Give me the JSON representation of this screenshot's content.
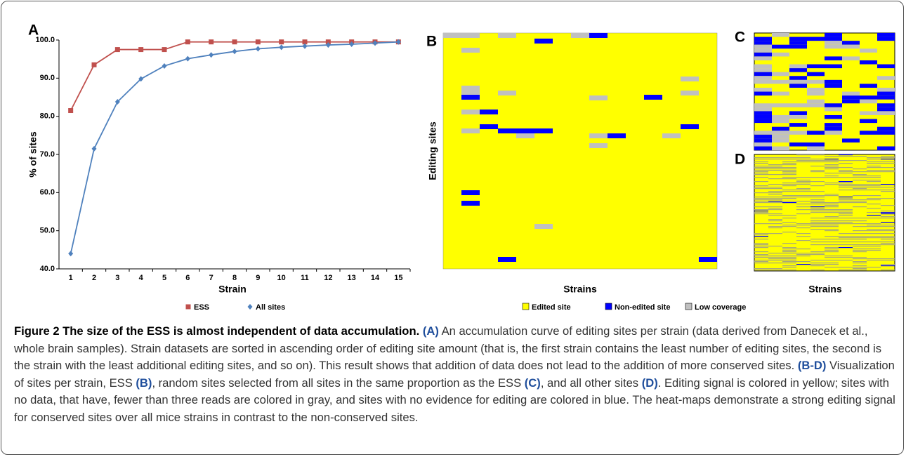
{
  "chart_data": [
    {
      "type": "line",
      "panel": "A",
      "xlabel": "Strain",
      "ylabel": "% of sites",
      "categories": [
        "1",
        "2",
        "3",
        "4",
        "5",
        "6",
        "7",
        "8",
        "9",
        "10",
        "11",
        "12",
        "13",
        "14",
        "15"
      ],
      "ylim": [
        40,
        100
      ],
      "yticks": [
        {
          "value": 40,
          "label": "40.0"
        },
        {
          "value": 50,
          "label": "50.0"
        },
        {
          "value": 60,
          "label": "60.0"
        },
        {
          "value": 70,
          "label": "70.0"
        },
        {
          "value": 80,
          "label": "80.0"
        },
        {
          "value": 90,
          "label": "90.0"
        },
        {
          "value": 100,
          "label": "100.0"
        }
      ],
      "series": [
        {
          "name": "ESS",
          "color": "#c0504d",
          "marker": "square",
          "values": [
            81.5,
            93.5,
            97.5,
            97.5,
            97.5,
            99.5,
            99.5,
            99.5,
            99.5,
            99.5,
            99.5,
            99.5,
            99.5,
            99.5,
            99.5
          ]
        },
        {
          "name": "All sites",
          "color": "#4f81bd",
          "marker": "diamond",
          "values": [
            44,
            71.5,
            83.8,
            89.8,
            93.2,
            95.1,
            96.1,
            97,
            97.7,
            98.1,
            98.4,
            98.7,
            98.9,
            99.2,
            99.5
          ]
        }
      ]
    },
    {
      "type": "heatmap",
      "panel": "B",
      "xlabel": "Strains",
      "ylabel": "Editing sites",
      "legend": [
        {
          "name": "Edited site",
          "color": "#ffff00"
        },
        {
          "name": "Non-edited site",
          "color": "#0000ff"
        },
        {
          "name": "Low coverage",
          "color": "#c0c0c0"
        }
      ]
    },
    {
      "type": "heatmap",
      "panel": "C"
    },
    {
      "type": "heatmap",
      "panel": "D",
      "xlabel": "Strains"
    }
  ],
  "caption": {
    "runs": [
      "Figure 2 The size of the ESS is almost independent of data accumulation.",
      " ",
      "(A)",
      " An accumulation curve of editing sites per strain (data derived from Danecek et al., whole brain samples). Strain datasets are sorted in ascending order of editing site amount (that is, the first strain contains the least number of editing sites, the second is the strain with the least additional editing sites, and so on). This result shows that addition of data does not lead to the addition of more conserved sites. ",
      "(B-D)",
      " Visualization of sites per strain, ESS ",
      "(B)",
      ", random sites selected from all sites in the same proportion as the ESS ",
      "(C)",
      ", and all other sites ",
      "(D)",
      ". Editing signal is colored in yellow; sites with no data, that have, fewer than three reads are colored in gray, and sites with no evidence for editing are colored in blue. The heat-maps demonstrate a strong editing signal for conserved sites over all mice strains in contrast to the non-conserved sites."
    ]
  }
}
